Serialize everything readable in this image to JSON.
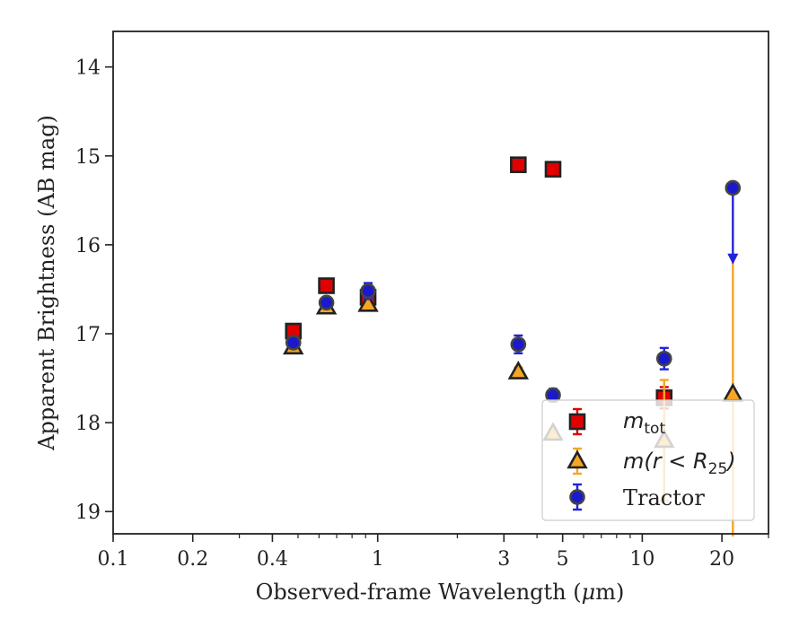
{
  "chart_data": {
    "type": "scatter",
    "xlabel_pre": "Observed-frame Wavelength (",
    "xlabel_mu": "μ",
    "xlabel_post": "m)",
    "ylabel": "Apparent Brightness (AB mag)",
    "xscale": "log",
    "xlim": [
      0.1,
      30
    ],
    "ylim": [
      19.25,
      13.6
    ],
    "y_inverted": true,
    "x_ticks": [
      {
        "value": 0.1,
        "label": "0.1"
      },
      {
        "value": 0.2,
        "label": "0.2"
      },
      {
        "value": 0.4,
        "label": "0.4"
      },
      {
        "value": 1,
        "label": "1"
      },
      {
        "value": 3,
        "label": "3"
      },
      {
        "value": 5,
        "label": "5"
      },
      {
        "value": 10,
        "label": "10"
      },
      {
        "value": 20,
        "label": "20"
      }
    ],
    "y_ticks": [
      {
        "value": 14,
        "label": "14"
      },
      {
        "value": 15,
        "label": "15"
      },
      {
        "value": 16,
        "label": "16"
      },
      {
        "value": 17,
        "label": "17"
      },
      {
        "value": 18,
        "label": "18"
      },
      {
        "value": 19,
        "label": "19"
      }
    ],
    "grid": false,
    "legend_position": "lower right",
    "series": [
      {
        "name": "m_tot",
        "legend_main": "m",
        "legend_sub": "tot",
        "marker": "square",
        "face_color": "#e00000",
        "edge_color": "#222222",
        "err_color": "#e00000",
        "points": [
          {
            "x": 0.48,
            "y": 16.97,
            "err": 0.05
          },
          {
            "x": 0.64,
            "y": 16.46,
            "err": 0.05
          },
          {
            "x": 0.92,
            "y": 16.59,
            "err": 0.05
          },
          {
            "x": 3.4,
            "y": 15.1,
            "err": 0.08
          },
          {
            "x": 4.6,
            "y": 15.15,
            "err": 0.07
          },
          {
            "x": 12.1,
            "y": 17.72,
            "err": 0.12
          }
        ]
      },
      {
        "name": "m(r < R25)",
        "legend_main": "m(r < R",
        "legend_sub": "25",
        "legend_tail": ")",
        "marker": "triangle",
        "face_color": "#f5a623",
        "edge_color": "#222222",
        "err_color": "#f5a623",
        "points": [
          {
            "x": 0.48,
            "y": 17.15,
            "err": 0.04
          },
          {
            "x": 0.64,
            "y": 16.7,
            "err": 0.04
          },
          {
            "x": 0.92,
            "y": 16.67,
            "err": 0.04
          },
          {
            "x": 3.4,
            "y": 17.43,
            "err": 0.05
          },
          {
            "x": 4.6,
            "y": 18.12,
            "err": 0.05
          },
          {
            "x": 12.1,
            "y": 18.2,
            "err": 0.68
          },
          {
            "x": 22.0,
            "y": 17.68,
            "err_low": 1.57,
            "err_high": 1.6
          }
        ]
      },
      {
        "name": "Tractor",
        "marker": "circle",
        "face_color": "#1a1acc",
        "edge_color": "#444444",
        "err_color": "#2222dd",
        "points": [
          {
            "x": 0.48,
            "y": 17.1,
            "err": 0.04
          },
          {
            "x": 0.64,
            "y": 16.65,
            "err": 0.04
          },
          {
            "x": 0.92,
            "y": 16.52,
            "err": 0.09
          },
          {
            "x": 3.4,
            "y": 17.12,
            "err": 0.1
          },
          {
            "x": 4.6,
            "y": 17.69,
            "err": 0.07
          },
          {
            "x": 12.1,
            "y": 17.28,
            "err": 0.12
          },
          {
            "x": 22.0,
            "y": 15.36,
            "upper_limit": true,
            "arrow_to": 16.2
          }
        ]
      }
    ]
  }
}
